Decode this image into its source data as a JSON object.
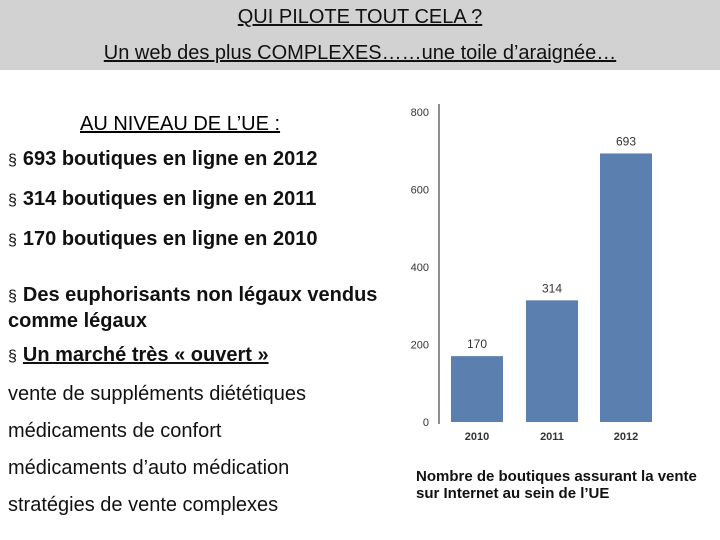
{
  "header": {
    "title": "QUI PILOTE TOUT CELA ?",
    "subtitle": "Un web des plus COMPLEXES……une toile d’araignée…"
  },
  "section_title": "AU NIVEAU DE L’UE :",
  "bullets": [
    "693 boutiques en ligne en 2012",
    "314 boutiques en ligne en 2011",
    "170 boutiques en ligne en 2010",
    "Des euphorisants non légaux vendus comme légaux",
    "Un marché très « ouvert »"
  ],
  "bullet_symbol": "§",
  "sub_items": [
    "vente de suppléments diététiques",
    "médicaments de confort",
    "médicaments d’auto médication",
    "stratégies de vente complexes"
  ],
  "caption": "Nombre de boutiques assurant la vente sur Internet au sein de l’UE",
  "chart_data": {
    "type": "bar",
    "categories": [
      "2010",
      "2011",
      "2012"
    ],
    "values": [
      170,
      314,
      693
    ],
    "data_labels": [
      "170",
      "314",
      "693"
    ],
    "yticks": [
      "0",
      "200",
      "400",
      "600",
      "800"
    ],
    "ylim": [
      0,
      800
    ],
    "grid": false,
    "bar_color": "#5b7fae"
  }
}
